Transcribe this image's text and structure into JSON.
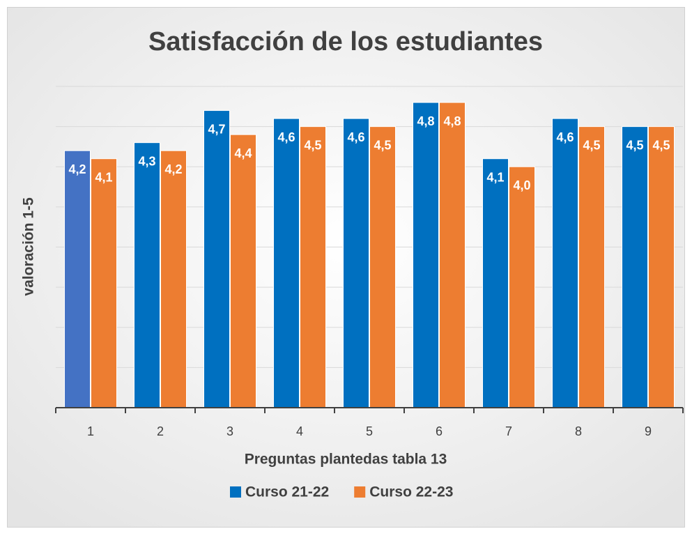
{
  "chart_data": {
    "type": "bar",
    "title": "Satisfacción de los estudiantes",
    "x_label": "Preguntas plantedas tabla 13",
    "y_label": "valoración 1-5",
    "categories": [
      "1",
      "2",
      "3",
      "4",
      "5",
      "6",
      "7",
      "8",
      "9"
    ],
    "series": [
      {
        "name": "Curso 21-22",
        "color": "#0070c0",
        "colors": [
          "#4472c4",
          "#0070c0",
          "#0070c0",
          "#0070c0",
          "#0070c0",
          "#0070c0",
          "#0070c0",
          "#0070c0",
          "#0070c0"
        ],
        "values": [
          4.2,
          4.3,
          4.7,
          4.6,
          4.6,
          4.8,
          4.1,
          4.6,
          4.5
        ],
        "value_labels": [
          "4,2",
          "4,3",
          "4,7",
          "4,6",
          "4,6",
          "4,8",
          "4,1",
          "4,6",
          "4,5"
        ]
      },
      {
        "name": "Curso 22-23",
        "color": "#ed7d31",
        "values": [
          4.1,
          4.2,
          4.4,
          4.5,
          4.5,
          4.8,
          4.0,
          4.5,
          4.5
        ],
        "value_labels": [
          "4,1",
          "4,2",
          "4,4",
          "4,5",
          "4,5",
          "4,8",
          "4,0",
          "4,5",
          "4,5"
        ]
      }
    ],
    "ylim": [
      1,
      5
    ],
    "yticks": [
      1,
      1.5,
      2,
      2.5,
      3,
      3.5,
      4,
      4.5,
      5
    ],
    "grid": true,
    "legend": "bottom"
  }
}
